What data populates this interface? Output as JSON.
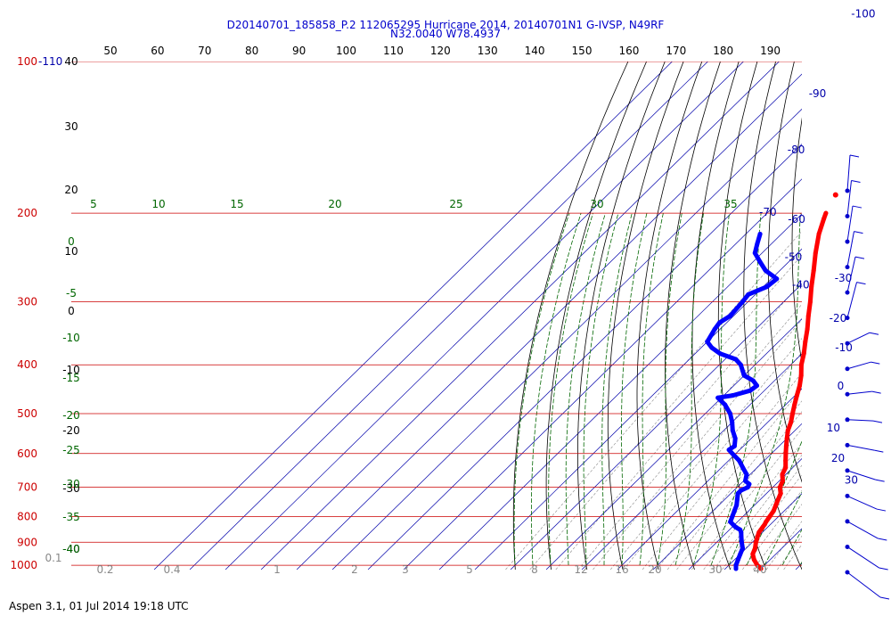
{
  "header": {
    "line1": "D20140701_185858_P.2 112065295 Hurricane 2014, 20140701N1 G-IVSP, N49RF",
    "line2": "N32.0040 W78.4937"
  },
  "footer": "Aspen 3.1, 01 Jul 2014  19:18 UTC",
  "colors": {
    "pressure_lines": "#cc0000",
    "temperature_profile": "#ff0000",
    "dewpoint_profile": "#0000ff",
    "isotherms": "#0000aa",
    "dry_adiabats": "#000000",
    "moist_adiabats": "#006600",
    "mixing_ratio": "#888888",
    "wind_barbs": "#0000cc"
  },
  "chart_data": {
    "type": "line",
    "chart_kind": "skew-T log-P diagram",
    "y_scale": "log pressure",
    "pressure_labels": [
      "100",
      "200",
      "300",
      "400",
      "500",
      "600",
      "700",
      "800",
      "900",
      "1000"
    ],
    "pressure_levels_hpa": [
      100,
      200,
      300,
      400,
      500,
      600,
      700,
      800,
      900,
      1000
    ],
    "top_labels": [
      "50",
      "60",
      "70",
      "80",
      "90",
      "100",
      "110",
      "120",
      "130",
      "140",
      "150",
      "160",
      "170",
      "180",
      "190"
    ],
    "left_black_labels": [
      "40",
      "30",
      "20",
      "10",
      "0",
      "-10",
      "-20",
      "-30",
      "-40"
    ],
    "isotherm_labels": [
      "-110",
      "-100",
      "-90",
      "-80",
      "-70",
      "-60",
      "-50",
      "-40",
      "-30",
      "-20",
      "-10",
      "0",
      "10",
      "20",
      "30"
    ],
    "green_top_labels": [
      "5",
      "10",
      "15",
      "20",
      "25",
      "30",
      "35"
    ],
    "green_left_labels": [
      "0",
      "-5",
      "-10",
      "-15",
      "-20",
      "-25",
      "-30",
      "-35",
      "-40"
    ],
    "mixing_ratio_labels": [
      "0.1",
      "0.2",
      "0.4",
      "1",
      "2",
      "3",
      "5",
      "8",
      "12",
      "16",
      "20",
      "30",
      "40"
    ],
    "series": [
      {
        "profile": "temperature",
        "points_hpa_c": [
          [
            1016,
            30.0
          ],
          [
            1000,
            28.0
          ],
          [
            975,
            25.5
          ],
          [
            950,
            23.5
          ],
          [
            925,
            22.5
          ],
          [
            900,
            21.0
          ],
          [
            880,
            20.0
          ],
          [
            860,
            19.0
          ],
          [
            850,
            18.8
          ],
          [
            840,
            18.6
          ],
          [
            830,
            18.4
          ],
          [
            820,
            18.0
          ],
          [
            800,
            17.5
          ],
          [
            780,
            17.0
          ],
          [
            760,
            16.0
          ],
          [
            740,
            15.0
          ],
          [
            720,
            14.0
          ],
          [
            700,
            12.0
          ],
          [
            680,
            11.0
          ],
          [
            660,
            9.0
          ],
          [
            640,
            8.0
          ],
          [
            620,
            6.0
          ],
          [
            600,
            4.0
          ],
          [
            580,
            2.0
          ],
          [
            560,
            0.0
          ],
          [
            540,
            -2.0
          ],
          [
            520,
            -3.5
          ],
          [
            500,
            -5.5
          ],
          [
            480,
            -7.5
          ],
          [
            460,
            -9.5
          ],
          [
            440,
            -11.5
          ],
          [
            420,
            -14.0
          ],
          [
            400,
            -17.0
          ],
          [
            380,
            -19.5
          ],
          [
            360,
            -22.5
          ],
          [
            340,
            -25.5
          ],
          [
            320,
            -29.0
          ],
          [
            300,
            -32.5
          ],
          [
            280,
            -36.5
          ],
          [
            260,
            -40.5
          ],
          [
            240,
            -45.0
          ],
          [
            220,
            -49.5
          ],
          [
            205,
            -52.5
          ],
          [
            200,
            -53.5
          ]
        ]
      },
      {
        "profile": "dewpoint",
        "points_hpa_c": [
          [
            1016,
            23.0
          ],
          [
            1000,
            22.0
          ],
          [
            975,
            21.0
          ],
          [
            950,
            20.0
          ],
          [
            925,
            19.0
          ],
          [
            900,
            17.0
          ],
          [
            880,
            15.5
          ],
          [
            860,
            14.0
          ],
          [
            850,
            13.0
          ],
          [
            840,
            11.0
          ],
          [
            820,
            8.0
          ],
          [
            800,
            7.0
          ],
          [
            780,
            6.0
          ],
          [
            760,
            5.0
          ],
          [
            740,
            3.5
          ],
          [
            720,
            2.0
          ],
          [
            710,
            2.0
          ],
          [
            700,
            3.0
          ],
          [
            690,
            2.5
          ],
          [
            680,
            0.5
          ],
          [
            660,
            -1.0
          ],
          [
            640,
            -4.0
          ],
          [
            620,
            -7.0
          ],
          [
            600,
            -11.0
          ],
          [
            590,
            -13.0
          ],
          [
            580,
            -12.5
          ],
          [
            560,
            -14.5
          ],
          [
            540,
            -17.5
          ],
          [
            520,
            -20.0
          ],
          [
            500,
            -23.0
          ],
          [
            480,
            -27.0
          ],
          [
            465,
            -31.0
          ],
          [
            460,
            -27.5
          ],
          [
            450,
            -24.0
          ],
          [
            440,
            -23.5
          ],
          [
            430,
            -26.0
          ],
          [
            420,
            -30.0
          ],
          [
            400,
            -34.0
          ],
          [
            390,
            -37.0
          ],
          [
            380,
            -43.0
          ],
          [
            370,
            -47.0
          ],
          [
            360,
            -50.0
          ],
          [
            340,
            -51.5
          ],
          [
            330,
            -52.0
          ],
          [
            320,
            -51.0
          ],
          [
            300,
            -51.5
          ],
          [
            290,
            -52.0
          ],
          [
            280,
            -49.0
          ],
          [
            270,
            -48.5
          ],
          [
            260,
            -54.0
          ],
          [
            250,
            -58.0
          ],
          [
            240,
            -62.0
          ],
          [
            230,
            -64.0
          ],
          [
            220,
            -66.0
          ]
        ]
      }
    ],
    "isolated_point": {
      "pressure_hpa": 184,
      "temperature_c": -56.0
    },
    "wind_barbs": [
      {
        "level": 1
      },
      {
        "level": 2
      },
      {
        "level": 3
      },
      {
        "level": 4
      },
      {
        "level": 5
      },
      {
        "level": 6
      },
      {
        "level": 7
      },
      {
        "level": 8
      },
      {
        "level": 9
      },
      {
        "level": 10
      },
      {
        "level": 11
      },
      {
        "level": 12
      },
      {
        "level": 13
      },
      {
        "level": 14
      },
      {
        "level": 15
      },
      {
        "level": 16
      }
    ]
  }
}
